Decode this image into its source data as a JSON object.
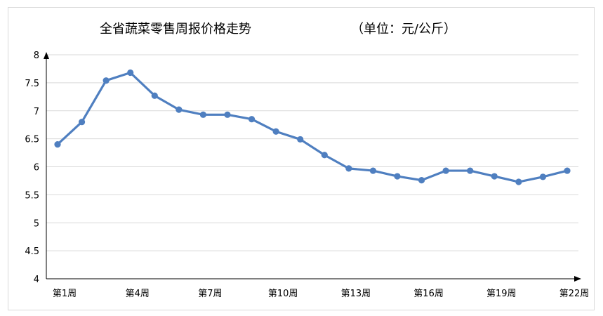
{
  "chart_data": {
    "type": "line",
    "title": "全省蔬菜零售周报价格走势",
    "unit_note": "（单位：元/公斤）",
    "xlabel": "",
    "ylabel": "",
    "ylim": [
      4,
      8
    ],
    "yticks": [
      "4",
      "4.5",
      "5",
      "5.5",
      "6",
      "6.5",
      "7",
      "7.5",
      "8"
    ],
    "grid": true,
    "legend": "none",
    "x": [
      "第1周",
      "第2周",
      "第3周",
      "第4周",
      "第5周",
      "第6周",
      "第7周",
      "第8周",
      "第9周",
      "第10周",
      "第11周",
      "第12周",
      "第13周",
      "第14周",
      "第15周",
      "第16周",
      "第17周",
      "第18周",
      "第19周",
      "第20周",
      "第21周",
      "第22周"
    ],
    "x_tick_labels_shown": [
      "第1周",
      "第4周",
      "第7周",
      "第10周",
      "第13周",
      "第16周",
      "第19周",
      "第22周"
    ],
    "series": [
      {
        "values": [
          6.4,
          6.8,
          7.54,
          7.68,
          7.27,
          7.02,
          6.93,
          6.93,
          6.85,
          6.63,
          6.49,
          6.21,
          5.97,
          5.93,
          5.83,
          5.76,
          5.93,
          5.93,
          5.83,
          5.73,
          5.82,
          5.93
        ]
      }
    ],
    "colors": {
      "line": "#4f7fc0",
      "marker": "#4f7fc0",
      "grid": "#d9d9d9",
      "axis": "#000000"
    }
  }
}
